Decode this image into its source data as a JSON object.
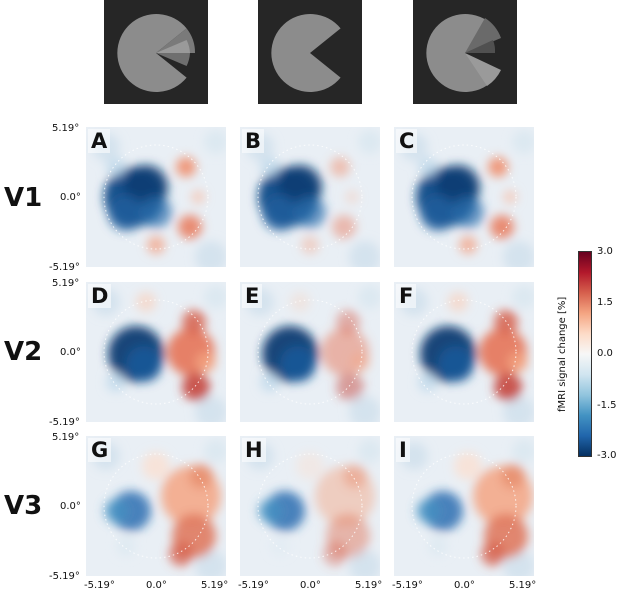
{
  "stimuli": [
    {
      "name": "pacman-with-wedge-right"
    },
    {
      "name": "pacman-plain"
    },
    {
      "name": "pacman-with-wedge-split"
    }
  ],
  "rows": [
    {
      "label": "V1",
      "panels": [
        "A",
        "B",
        "C"
      ]
    },
    {
      "label": "V2",
      "panels": [
        "D",
        "E",
        "F"
      ]
    },
    {
      "label": "V3",
      "panels": [
        "G",
        "H",
        "I"
      ]
    }
  ],
  "axis": {
    "y_ticks": [
      "5.19°",
      "0.0°",
      "-5.19°"
    ],
    "x_ticks": [
      "-5.19°",
      "0.0°",
      "5.19°"
    ]
  },
  "colorbar": {
    "label": "fMRI signal change [%]",
    "ticks": [
      "3.0",
      "1.5",
      "0.0",
      "-1.5",
      "-3.0"
    ],
    "colors": [
      "#053061",
      "#2166ac",
      "#4393c3",
      "#92c5de",
      "#d1e5f0",
      "#f7f7f7",
      "#fddbc7",
      "#f4a582",
      "#d6604d",
      "#b2182b",
      "#67001f"
    ]
  }
}
